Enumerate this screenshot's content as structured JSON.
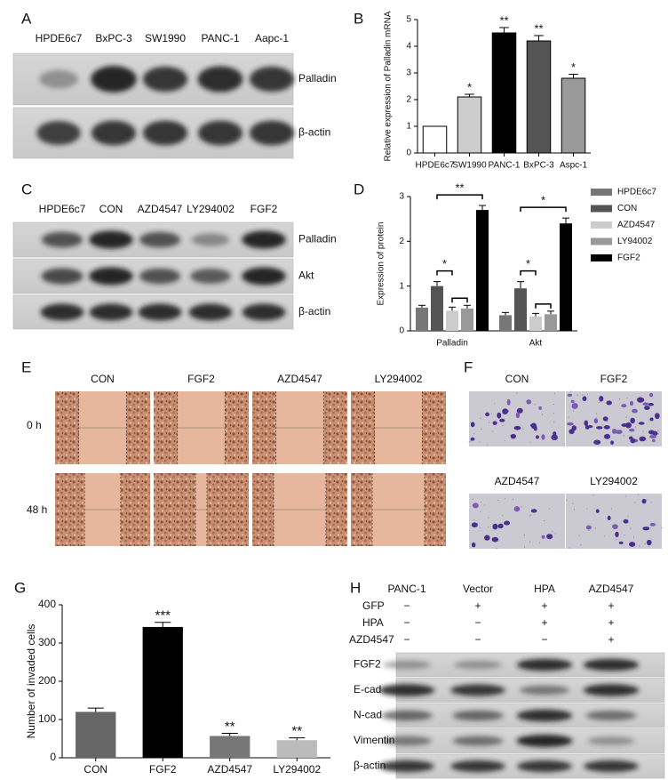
{
  "panel_labels": [
    "A",
    "B",
    "C",
    "D",
    "E",
    "F",
    "G",
    "H"
  ],
  "panel_a": {
    "lanes": [
      "HPDE6c7",
      "BxPC-3",
      "SW1990",
      "PANC-1",
      "Aapc-1"
    ],
    "rows": [
      "Palladin",
      "β-actin"
    ]
  },
  "panel_c": {
    "lanes": [
      "HPDE6c7",
      "CON",
      "AZD4547",
      "LY294002",
      "FGF2"
    ],
    "rows": [
      "Palladin",
      "Akt",
      "β-actin"
    ]
  },
  "panel_e": {
    "columns": [
      "CON",
      "FGF2",
      "AZD4547",
      "LY294002"
    ],
    "rows": [
      "0 h",
      "48 h"
    ]
  },
  "panel_f": {
    "labels": [
      "CON",
      "FGF2",
      "AZD4547",
      "LY294002"
    ]
  },
  "panel_h": {
    "lanes": [
      "PANC-1",
      "Vector",
      "HPA",
      "AZD4547"
    ],
    "treatments": [
      {
        "name": "GFP",
        "signs": [
          "−",
          "+",
          "+",
          "+"
        ]
      },
      {
        "name": "HPA",
        "signs": [
          "−",
          "−",
          "+",
          "+"
        ]
      },
      {
        "name": "AZD4547",
        "signs": [
          "−",
          "−",
          "−",
          "+"
        ]
      }
    ],
    "rows": [
      "FGF2",
      "E-cad",
      "N-cad",
      "Vimentin",
      "β-actin"
    ]
  },
  "chart_data": [
    {
      "type": "bar",
      "y_label": "Relative expression of Palladin mRNA",
      "categories": [
        "HPDE6c7",
        "SW1990",
        "PANC-1",
        "BxPC-3",
        "Aspc-1"
      ],
      "values": [
        1,
        2.1,
        4.5,
        4.2,
        2.8
      ],
      "errors": [
        null,
        0.1,
        0.2,
        0.2,
        0.15
      ],
      "colors": [
        "#ffffff",
        "#cccccc",
        "#000000",
        "#555555",
        "#999999"
      ],
      "edgecolor": "#000000",
      "significance": [
        null,
        "*",
        "**",
        "**",
        "*"
      ],
      "ylim": [
        0,
        5
      ],
      "yticks": [
        0,
        1,
        2,
        3,
        4,
        5
      ]
    },
    {
      "type": "grouped_bar",
      "y_label": "Expression of protein",
      "categories": [
        "Palladin",
        "Akt"
      ],
      "series": [
        {
          "name": "HPDE6c7",
          "color": "#777777",
          "values": [
            0.52,
            0.35
          ],
          "errors": [
            0.05,
            0.06
          ]
        },
        {
          "name": "CON",
          "color": "#555555",
          "values": [
            1.0,
            0.95
          ],
          "errors": [
            0.1,
            0.15
          ]
        },
        {
          "name": "AZD4547",
          "color": "#cccccc",
          "values": [
            0.45,
            0.32
          ],
          "errors": [
            0.08,
            0.07
          ]
        },
        {
          "name": "LY94002",
          "color": "#999999",
          "values": [
            0.5,
            0.37
          ],
          "errors": [
            0.07,
            0.07
          ]
        },
        {
          "name": "FGF2",
          "color": "#000000",
          "values": [
            2.7,
            2.4
          ],
          "errors": [
            0.1,
            0.12
          ]
        }
      ],
      "annotations": [
        "**",
        "*",
        "*",
        "*"
      ],
      "legend": "right",
      "ylim": [
        0,
        3
      ],
      "yticks": [
        0,
        1,
        2,
        3
      ]
    },
    {
      "type": "bar",
      "y_label": "Number of invaded cells",
      "categories": [
        "CON",
        "FGF2",
        "AZD4547",
        "LY294002"
      ],
      "values": [
        120,
        342,
        57,
        46
      ],
      "errors": [
        10,
        12,
        7,
        6
      ],
      "colors": [
        "#666666",
        "#000000",
        "#777777",
        "#bbbbbb"
      ],
      "significance": [
        null,
        "***",
        "**",
        "**"
      ],
      "ylim": [
        0,
        400
      ],
      "yticks": [
        0,
        100,
        200,
        300,
        400
      ]
    }
  ]
}
